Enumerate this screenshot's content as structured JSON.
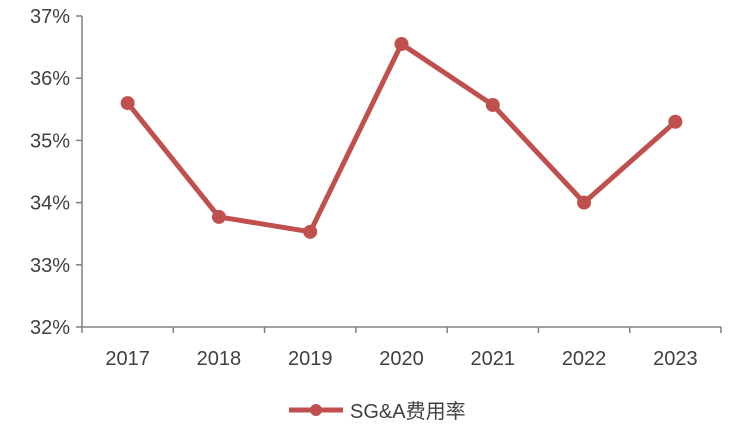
{
  "chart_data": {
    "type": "line",
    "categories": [
      "2017",
      "2018",
      "2019",
      "2020",
      "2021",
      "2022",
      "2023"
    ],
    "series": [
      {
        "name": "SG&A费用率",
        "values": [
          35.6,
          33.77,
          33.53,
          36.55,
          35.57,
          34.0,
          35.3
        ],
        "color": "#c0504d"
      }
    ],
    "y_tick_labels": [
      "32%",
      "33%",
      "34%",
      "35%",
      "36%",
      "37%"
    ],
    "ylim": [
      32,
      37
    ],
    "grid": false,
    "legend_position": "bottom-center"
  }
}
